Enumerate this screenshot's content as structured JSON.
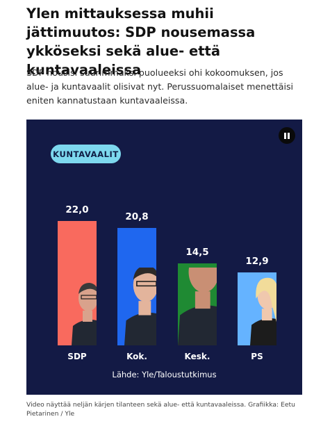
{
  "article": {
    "headline": "Ylen mittauksessa muhii jättimuutos: SDP nousemassa ykköseksi sekä alue- että kuntavaaleissa",
    "lead": "SDP nousisi suurimmaksi puolueeksi ohi kokoomuksen, jos alue- ja kuntavaalit olisivat nyt. Perussuomalaiset menettäisi eniten kannatustaan kuntavaaleissa.",
    "caption": "Video näyttää neljän kärjen tilanteen sekä alue- että kuntavaaleissa. Grafiikka: Eetu Pietarinen / Yle"
  },
  "video": {
    "pill_label": "KUNTAVAALIT",
    "pause_icon": "pause-icon",
    "source": "Lähde: Yle/Taloustutkimus",
    "background": "#131a45"
  },
  "chart_data": {
    "type": "bar",
    "categories": [
      "SDP",
      "Kok.",
      "Kesk.",
      "PS"
    ],
    "values": [
      22.0,
      20.8,
      14.5,
      12.9
    ],
    "value_labels": [
      "22,0",
      "20,8",
      "14,5",
      "12,9"
    ],
    "colors": [
      "#f96a5e",
      "#1f67ef",
      "#1f8a33",
      "#65b3ff"
    ],
    "title": "KUNTAVAALIT",
    "xlabel": "",
    "ylabel": "",
    "ylim": [
      0,
      22.0
    ],
    "grid": false
  }
}
